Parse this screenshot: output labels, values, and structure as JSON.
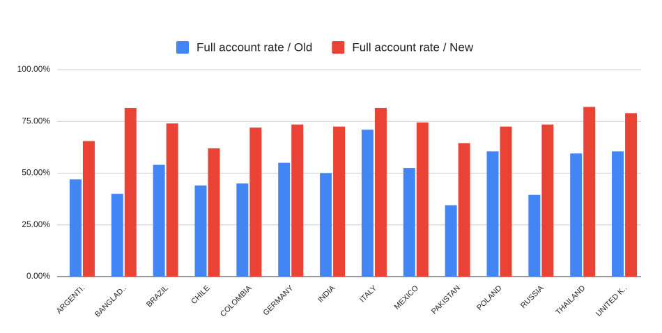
{
  "chart_data": {
    "type": "bar",
    "categories": [
      "ARGENTI.",
      "BANGLAD..",
      "BRAZIL",
      "CHILE",
      "COLOMBIA",
      "GERMANY",
      "INDIA",
      "ITALY",
      "MEXICO",
      "PAKISTAN",
      "POLAND",
      "RUSSIA",
      "THAILAND",
      "UNITED K.."
    ],
    "series": [
      {
        "name": "Full account rate / Old",
        "color": "#4285f4",
        "values": [
          47,
          40,
          54,
          44,
          45,
          55,
          50,
          71,
          52.5,
          34.5,
          60.5,
          39.5,
          59.5,
          60.5
        ]
      },
      {
        "name": "Full account rate / New",
        "color": "#ea4335",
        "values": [
          65.5,
          81.5,
          74,
          62,
          72,
          73.5,
          72.5,
          81.5,
          74.5,
          64.5,
          72.5,
          73.5,
          82,
          79
        ]
      }
    ],
    "ylim": [
      0,
      100
    ],
    "yticks": [
      {
        "value": 0,
        "label": "0.00%"
      },
      {
        "value": 25,
        "label": "25.00%"
      },
      {
        "value": 50,
        "label": "50.00%"
      },
      {
        "value": 75,
        "label": "75.00%"
      },
      {
        "value": 100,
        "label": "100.00%"
      }
    ],
    "grid": true,
    "legend": "top"
  }
}
